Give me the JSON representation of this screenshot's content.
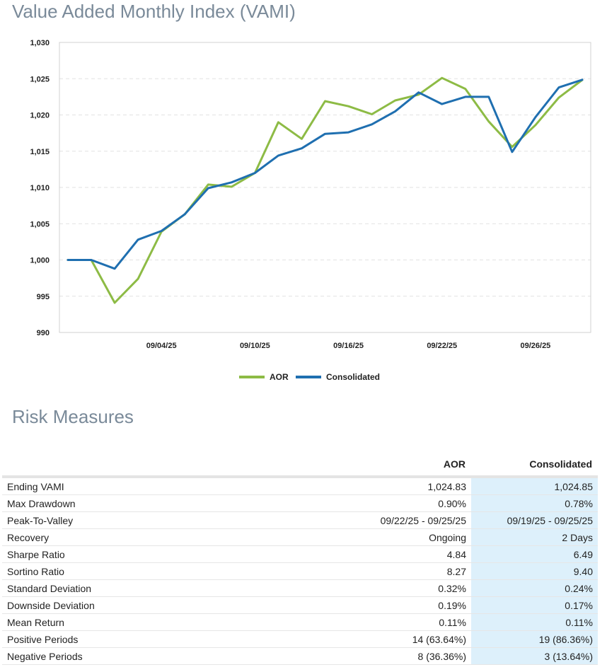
{
  "vami_title": "Value Added Monthly Index (VAMI)",
  "risk_title": "Risk Measures",
  "chart_data": {
    "type": "line",
    "title": "Value Added Monthly Index (VAMI)",
    "xlabel": "",
    "ylabel": "",
    "ylim": [
      990,
      1030
    ],
    "yticks": [
      990,
      995,
      1000,
      1005,
      1010,
      1015,
      1020,
      1025,
      1030
    ],
    "ytick_labels": [
      "990",
      "995",
      "1,000",
      "1,005",
      "1,010",
      "1,015",
      "1,020",
      "1,025",
      "1,030"
    ],
    "x_count": 23,
    "xtick_positions": [
      4,
      8,
      12,
      16,
      20
    ],
    "xtick_labels": [
      "09/04/25",
      "09/10/25",
      "09/16/25",
      "09/22/25",
      "09/26/25"
    ],
    "grid": true,
    "legend_position": "bottom-center",
    "series": [
      {
        "name": "AOR",
        "color": "#8dbb45",
        "values": [
          1000,
          1000,
          994.1,
          997.4,
          1003.9,
          1006.3,
          1010.4,
          1010.1,
          1012.0,
          1019.0,
          1016.7,
          1021.9,
          1021.2,
          1020.1,
          1022.0,
          1022.8,
          1025.1,
          1023.6,
          1019.1,
          1015.6,
          1018.6,
          1022.4,
          1024.83
        ]
      },
      {
        "name": "Consolidated",
        "color": "#1f6fb0",
        "values": [
          1000,
          1000,
          998.8,
          1002.8,
          1004.0,
          1006.3,
          1009.9,
          1010.7,
          1012.0,
          1014.4,
          1015.4,
          1017.4,
          1017.6,
          1018.7,
          1020.5,
          1023.1,
          1021.5,
          1022.5,
          1022.5,
          1014.9,
          1019.7,
          1023.8,
          1024.85
        ]
      }
    ]
  },
  "risk_table": {
    "headers": [
      "",
      "AOR",
      "Consolidated"
    ],
    "rows": [
      [
        "Ending VAMI",
        "1,024.83",
        "1,024.85"
      ],
      [
        "Max Drawdown",
        "0.90%",
        "0.78%"
      ],
      [
        "Peak-To-Valley",
        "09/22/25 - 09/25/25",
        "09/19/25 - 09/25/25"
      ],
      [
        "Recovery",
        "Ongoing",
        "2 Days"
      ],
      [
        "Sharpe Ratio",
        "4.84",
        "6.49"
      ],
      [
        "Sortino Ratio",
        "8.27",
        "9.40"
      ],
      [
        "Standard Deviation",
        "0.32%",
        "0.24%"
      ],
      [
        "Downside Deviation",
        "0.19%",
        "0.17%"
      ],
      [
        "Mean Return",
        "0.11%",
        "0.11%"
      ],
      [
        "Positive Periods",
        "14 (63.64%)",
        "19 (86.36%)"
      ],
      [
        "Negative Periods",
        "8 (36.36%)",
        "3 (13.64%)"
      ]
    ]
  }
}
